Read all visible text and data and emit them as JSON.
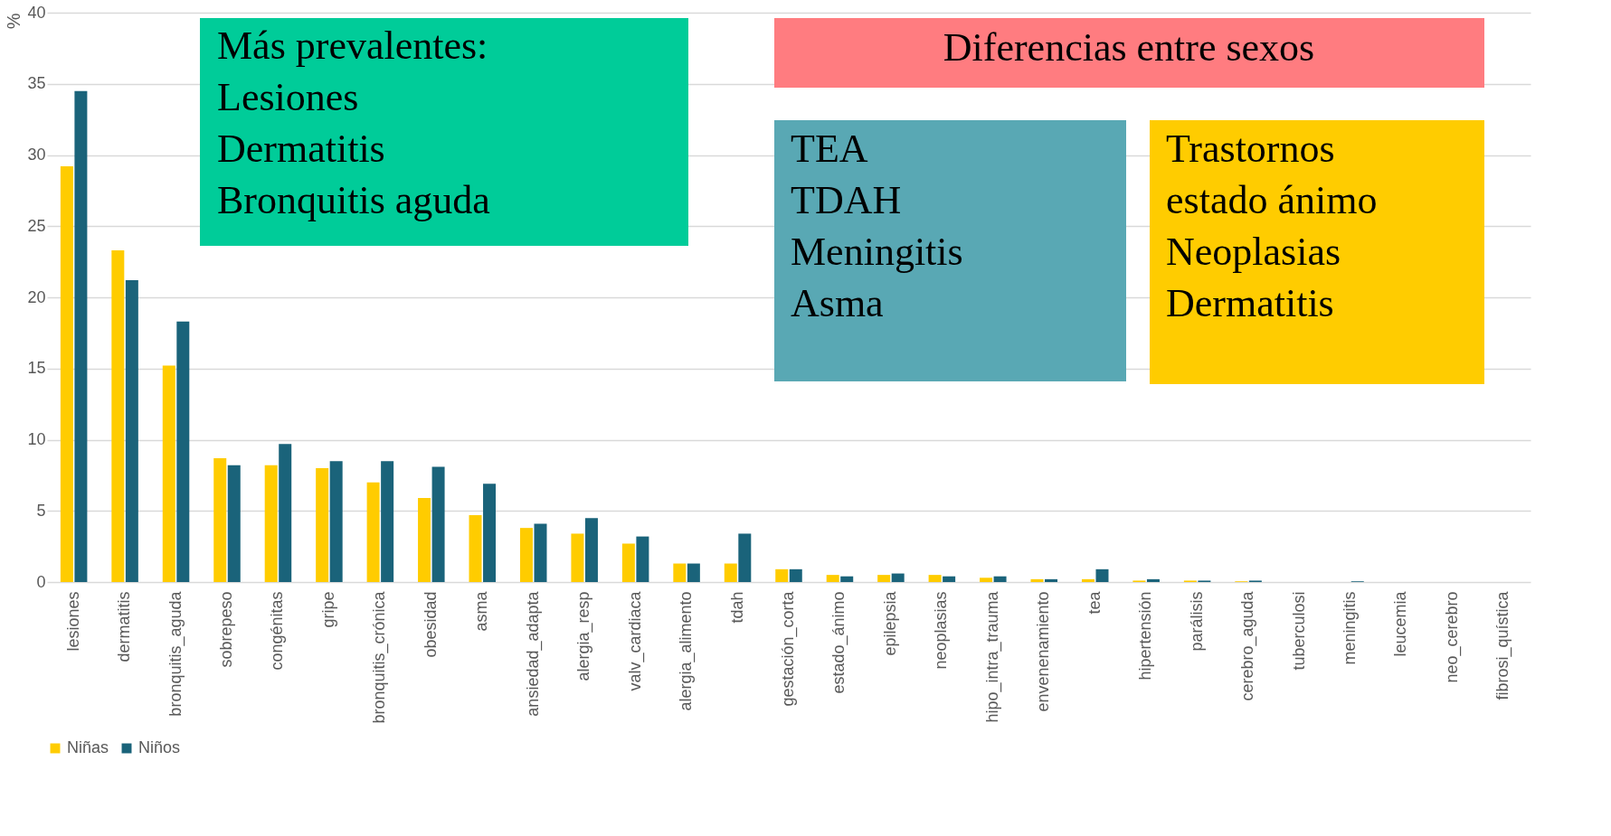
{
  "chart_data": {
    "type": "bar",
    "categories": [
      "lesiones",
      "dermatitis",
      "bronquitis_aguda",
      "sobrepeso",
      "congénitas",
      "gripe",
      "bronquitis_crónica",
      "obesidad",
      "asma",
      "ansiedad_adapta",
      "alergia_resp",
      "valv_cardiaca",
      "alergia_alimento",
      "tdah",
      "gestación_corta",
      "estado_ánimo",
      "epilepsia",
      "neoplasias",
      "hipo_intra_trauma",
      "envenenamiento",
      "tea",
      "hipertensión",
      "parálisis",
      "cerebro_aguda",
      "tuberculosi",
      "meningitis",
      "leucemia",
      "neo_cerebro",
      "fibrosi_quística"
    ],
    "series": [
      {
        "name": "Niñas",
        "color": "#ffcc00",
        "values": [
          29.2,
          23.3,
          15.2,
          8.7,
          8.2,
          8.0,
          7.0,
          5.9,
          4.7,
          3.8,
          3.4,
          2.7,
          1.3,
          1.3,
          0.9,
          0.5,
          0.5,
          0.5,
          0.3,
          0.2,
          0.2,
          0.1,
          0.1,
          0.05,
          0,
          null,
          0,
          0,
          0
        ]
      },
      {
        "name": "Niños",
        "color": "#1a637a",
        "values": [
          34.5,
          21.2,
          18.3,
          8.2,
          9.7,
          8.5,
          8.5,
          8.1,
          6.9,
          4.1,
          4.5,
          3.2,
          1.3,
          3.4,
          0.9,
          0.4,
          0.6,
          0.4,
          0.4,
          0.2,
          0.9,
          0.2,
          0.1,
          0.1,
          0,
          0.05,
          0,
          0,
          0
        ]
      }
    ],
    "ylabel": "%",
    "ylim": [
      0,
      40
    ],
    "yticks": [
      0,
      5,
      10,
      15,
      20,
      25,
      30,
      35,
      40
    ],
    "grid": "y",
    "legend": "bottom",
    "annotations": [
      "Más prevalentes:\nLesiones\nDermatitis\nBronquitis aguda",
      "Diferencias entre sexos",
      "TEA\nTDAH\nMeningitis\nAsma",
      "Trastornos\nestado ánimo\nNeoplasias\nDermatitis"
    ]
  }
}
